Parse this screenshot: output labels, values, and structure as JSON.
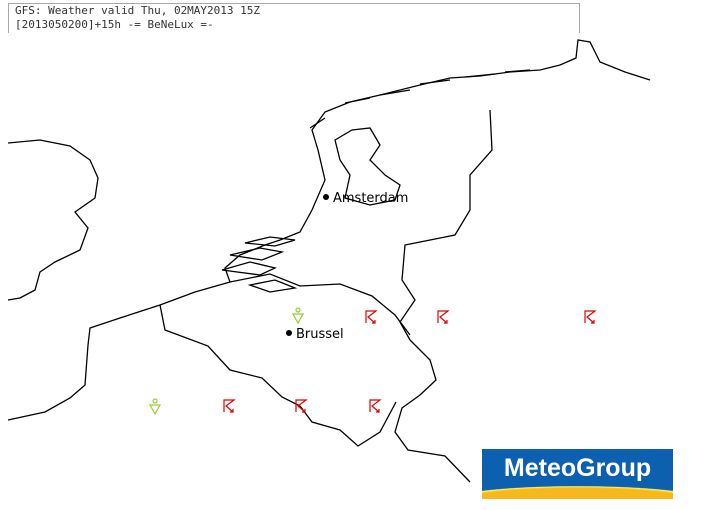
{
  "header": {
    "line1": "GFS: Weather valid Thu, 02MAY2013 15Z",
    "line2": "[2013050200]+15h -= BeNeLux =-"
  },
  "cities": [
    {
      "name": "Amsterdam"
    },
    {
      "name": "Brussel"
    }
  ],
  "symbols": {
    "thunderstorm_color": "#e00000",
    "shower_color": "#99cc33",
    "thunderstorm_icon": "thunderstorm-icon",
    "shower_icon": "shower-icon"
  },
  "logo": {
    "text": "MeteoGroup",
    "bg_color": "#0d5fb0",
    "sun_color": "#f5b820"
  }
}
